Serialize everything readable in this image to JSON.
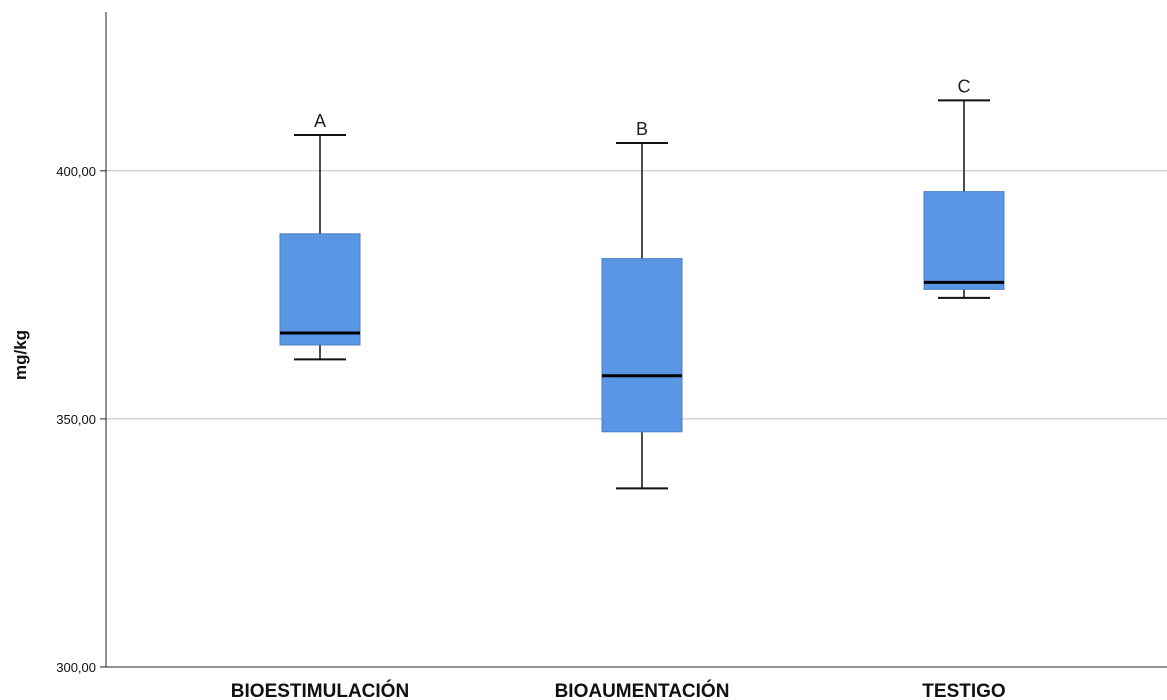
{
  "chart_data": {
    "type": "boxplot",
    "ylabel": "mg/kg",
    "xlabel": "",
    "ylim": [
      300,
      432
    ],
    "yticks": [
      {
        "value": 300,
        "label": "300,00"
      },
      {
        "value": 350,
        "label": "350,00"
      },
      {
        "value": 400,
        "label": "400,00"
      }
    ],
    "grid": "horizontal at ticks",
    "box_color": "#5a96e3",
    "categories": [
      "BIOESTIMULACIÓN",
      "BIOAUMENTACIÓN",
      "TESTIGO"
    ],
    "boxes": [
      {
        "category": "BIOESTIMULACIÓN",
        "letter": "A",
        "min": 362,
        "q1": 364.9,
        "median": 367.3,
        "q3": 387.3,
        "max": 407.2
      },
      {
        "category": "BIOAUMENTACIÓN",
        "letter": "B",
        "min": 336,
        "q1": 347.4,
        "median": 358.7,
        "q3": 382.3,
        "max": 405.6
      },
      {
        "category": "TESTIGO",
        "letter": "C",
        "min": 374.4,
        "q1": 376.1,
        "median": 377.5,
        "q3": 395.8,
        "max": 414.2
      }
    ]
  }
}
